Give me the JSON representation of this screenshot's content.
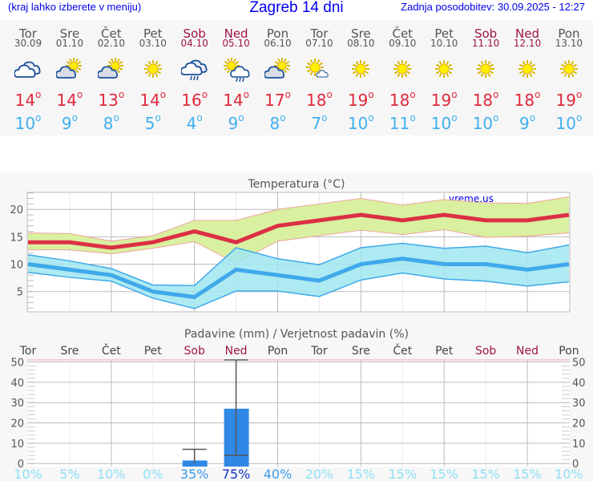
{
  "header": {
    "hint": "(kraj lahko izberete v meniju)",
    "title": "Zagreb 14 dni",
    "updated": "Zadnja posodobitev: 30.09.2025 - 12:27"
  },
  "colors": {
    "weekend": "#a0134a",
    "max": "#e0283c",
    "min": "#3fb0f0",
    "link": "#0000ee"
  },
  "days": [
    {
      "name": "Tor",
      "date": "30.09",
      "icon": "cloudy-icon",
      "max": "14",
      "min": "10",
      "weekend": false
    },
    {
      "name": "Sre",
      "date": "01.10",
      "icon": "partly-cloudy-icon",
      "max": "14",
      "min": "9",
      "weekend": false
    },
    {
      "name": "Čet",
      "date": "02.10",
      "icon": "partly-cloudy-icon",
      "max": "13",
      "min": "8",
      "weekend": false
    },
    {
      "name": "Pet",
      "date": "03.10",
      "icon": "sun-icon",
      "max": "14",
      "min": "5",
      "weekend": false
    },
    {
      "name": "Sob",
      "date": "04.10",
      "icon": "rain-cloud-icon",
      "max": "16",
      "min": "4",
      "weekend": true
    },
    {
      "name": "Ned",
      "date": "05.10",
      "icon": "sun-rain-icon",
      "max": "14",
      "min": "9",
      "weekend": true
    },
    {
      "name": "Pon",
      "date": "06.10",
      "icon": "partly-cloudy-icon",
      "max": "17",
      "min": "8",
      "weekend": false
    },
    {
      "name": "Tor",
      "date": "07.10",
      "icon": "sun-small-cloud-icon",
      "max": "18",
      "min": "7",
      "weekend": false
    },
    {
      "name": "Sre",
      "date": "08.10",
      "icon": "sun-icon",
      "max": "19",
      "min": "10",
      "weekend": false
    },
    {
      "name": "Čet",
      "date": "09.10",
      "icon": "sun-icon",
      "max": "18",
      "min": "11",
      "weekend": false
    },
    {
      "name": "Pet",
      "date": "10.10",
      "icon": "sun-icon",
      "max": "19",
      "min": "10",
      "weekend": false
    },
    {
      "name": "Sob",
      "date": "11.10",
      "icon": "sun-icon",
      "max": "18",
      "min": "10",
      "weekend": true
    },
    {
      "name": "Ned",
      "date": "12.10",
      "icon": "sun-icon",
      "max": "18",
      "min": "9",
      "weekend": true
    },
    {
      "name": "Pon",
      "date": "13.10",
      "icon": "sun-icon",
      "max": "19",
      "min": "10",
      "weekend": false
    }
  ],
  "chart_data": [
    {
      "type": "line",
      "title": "Temperatura (°C)",
      "watermark": "vreme.us",
      "ylim": [
        1.3,
        23.1
      ],
      "yticks": [
        "5",
        "10",
        "15",
        "20"
      ],
      "grid": true,
      "series": [
        {
          "values": [
            14,
            14,
            13,
            14,
            16,
            14,
            17,
            18,
            19,
            18,
            19,
            18,
            18,
            19
          ],
          "color": "#dc2f45",
          "band_upper": [
            15.7,
            15.6,
            14.2,
            15.2,
            18,
            18,
            20,
            21,
            22,
            20.8,
            21.8,
            21.2,
            21.1,
            22.3
          ],
          "band_lower": [
            12.6,
            12.6,
            11.9,
            12.9,
            14.1,
            10.2,
            14.2,
            15.2,
            16.2,
            15.4,
            16.3,
            14.9,
            15.1,
            15.7
          ],
          "band_color": "#d9f0a0"
        },
        {
          "values": [
            10,
            9,
            8,
            5,
            4,
            9,
            8,
            7,
            10,
            11,
            10,
            10,
            9,
            10
          ],
          "color": "#3fa9ea",
          "band_upper": [
            11.7,
            10.6,
            9.2,
            6.2,
            6.1,
            13,
            11,
            9.9,
            13,
            13.8,
            12.9,
            13.3,
            12.1,
            13.5
          ],
          "band_lower": [
            8.5,
            7.6,
            6.9,
            3.8,
            1.9,
            5.1,
            5.1,
            4.1,
            7.1,
            8.4,
            7.3,
            6.9,
            6.0,
            6.8
          ],
          "band_color": "#a0e6f0"
        }
      ]
    },
    {
      "type": "bar",
      "title": "Padavine (mm) / Verjetnost padavin (%)",
      "categories": [
        "Tor",
        "Sre",
        "Čet",
        "Pet",
        "Sob",
        "Ned",
        "Pon",
        "Tor",
        "Sre",
        "Čet",
        "Pet",
        "Sob",
        "Ned",
        "Pon"
      ],
      "values": [
        0,
        0,
        0,
        0,
        1.5,
        27,
        0,
        0,
        0,
        0,
        0,
        0,
        0,
        0
      ],
      "range_low": [
        null,
        null,
        null,
        null,
        0,
        4,
        null,
        null,
        null,
        null,
        null,
        null,
        null,
        null
      ],
      "range_high": [
        null,
        null,
        null,
        null,
        7,
        51,
        null,
        null,
        null,
        null,
        null,
        null,
        null,
        null
      ],
      "probability": [
        "10%",
        "5%",
        "10%",
        "0%",
        "35%",
        "75%",
        "40%",
        "20%",
        "15%",
        "15%",
        "15%",
        "15%",
        "15%",
        "10%"
      ],
      "probability_values": [
        10,
        5,
        10,
        0,
        35,
        75,
        40,
        20,
        15,
        15,
        15,
        15,
        15,
        10
      ],
      "ylim": [
        -1.5,
        51
      ],
      "yticks": [
        "0",
        "10",
        "20",
        "30",
        "40",
        "50"
      ],
      "bar_color": "#2f88e6"
    }
  ]
}
